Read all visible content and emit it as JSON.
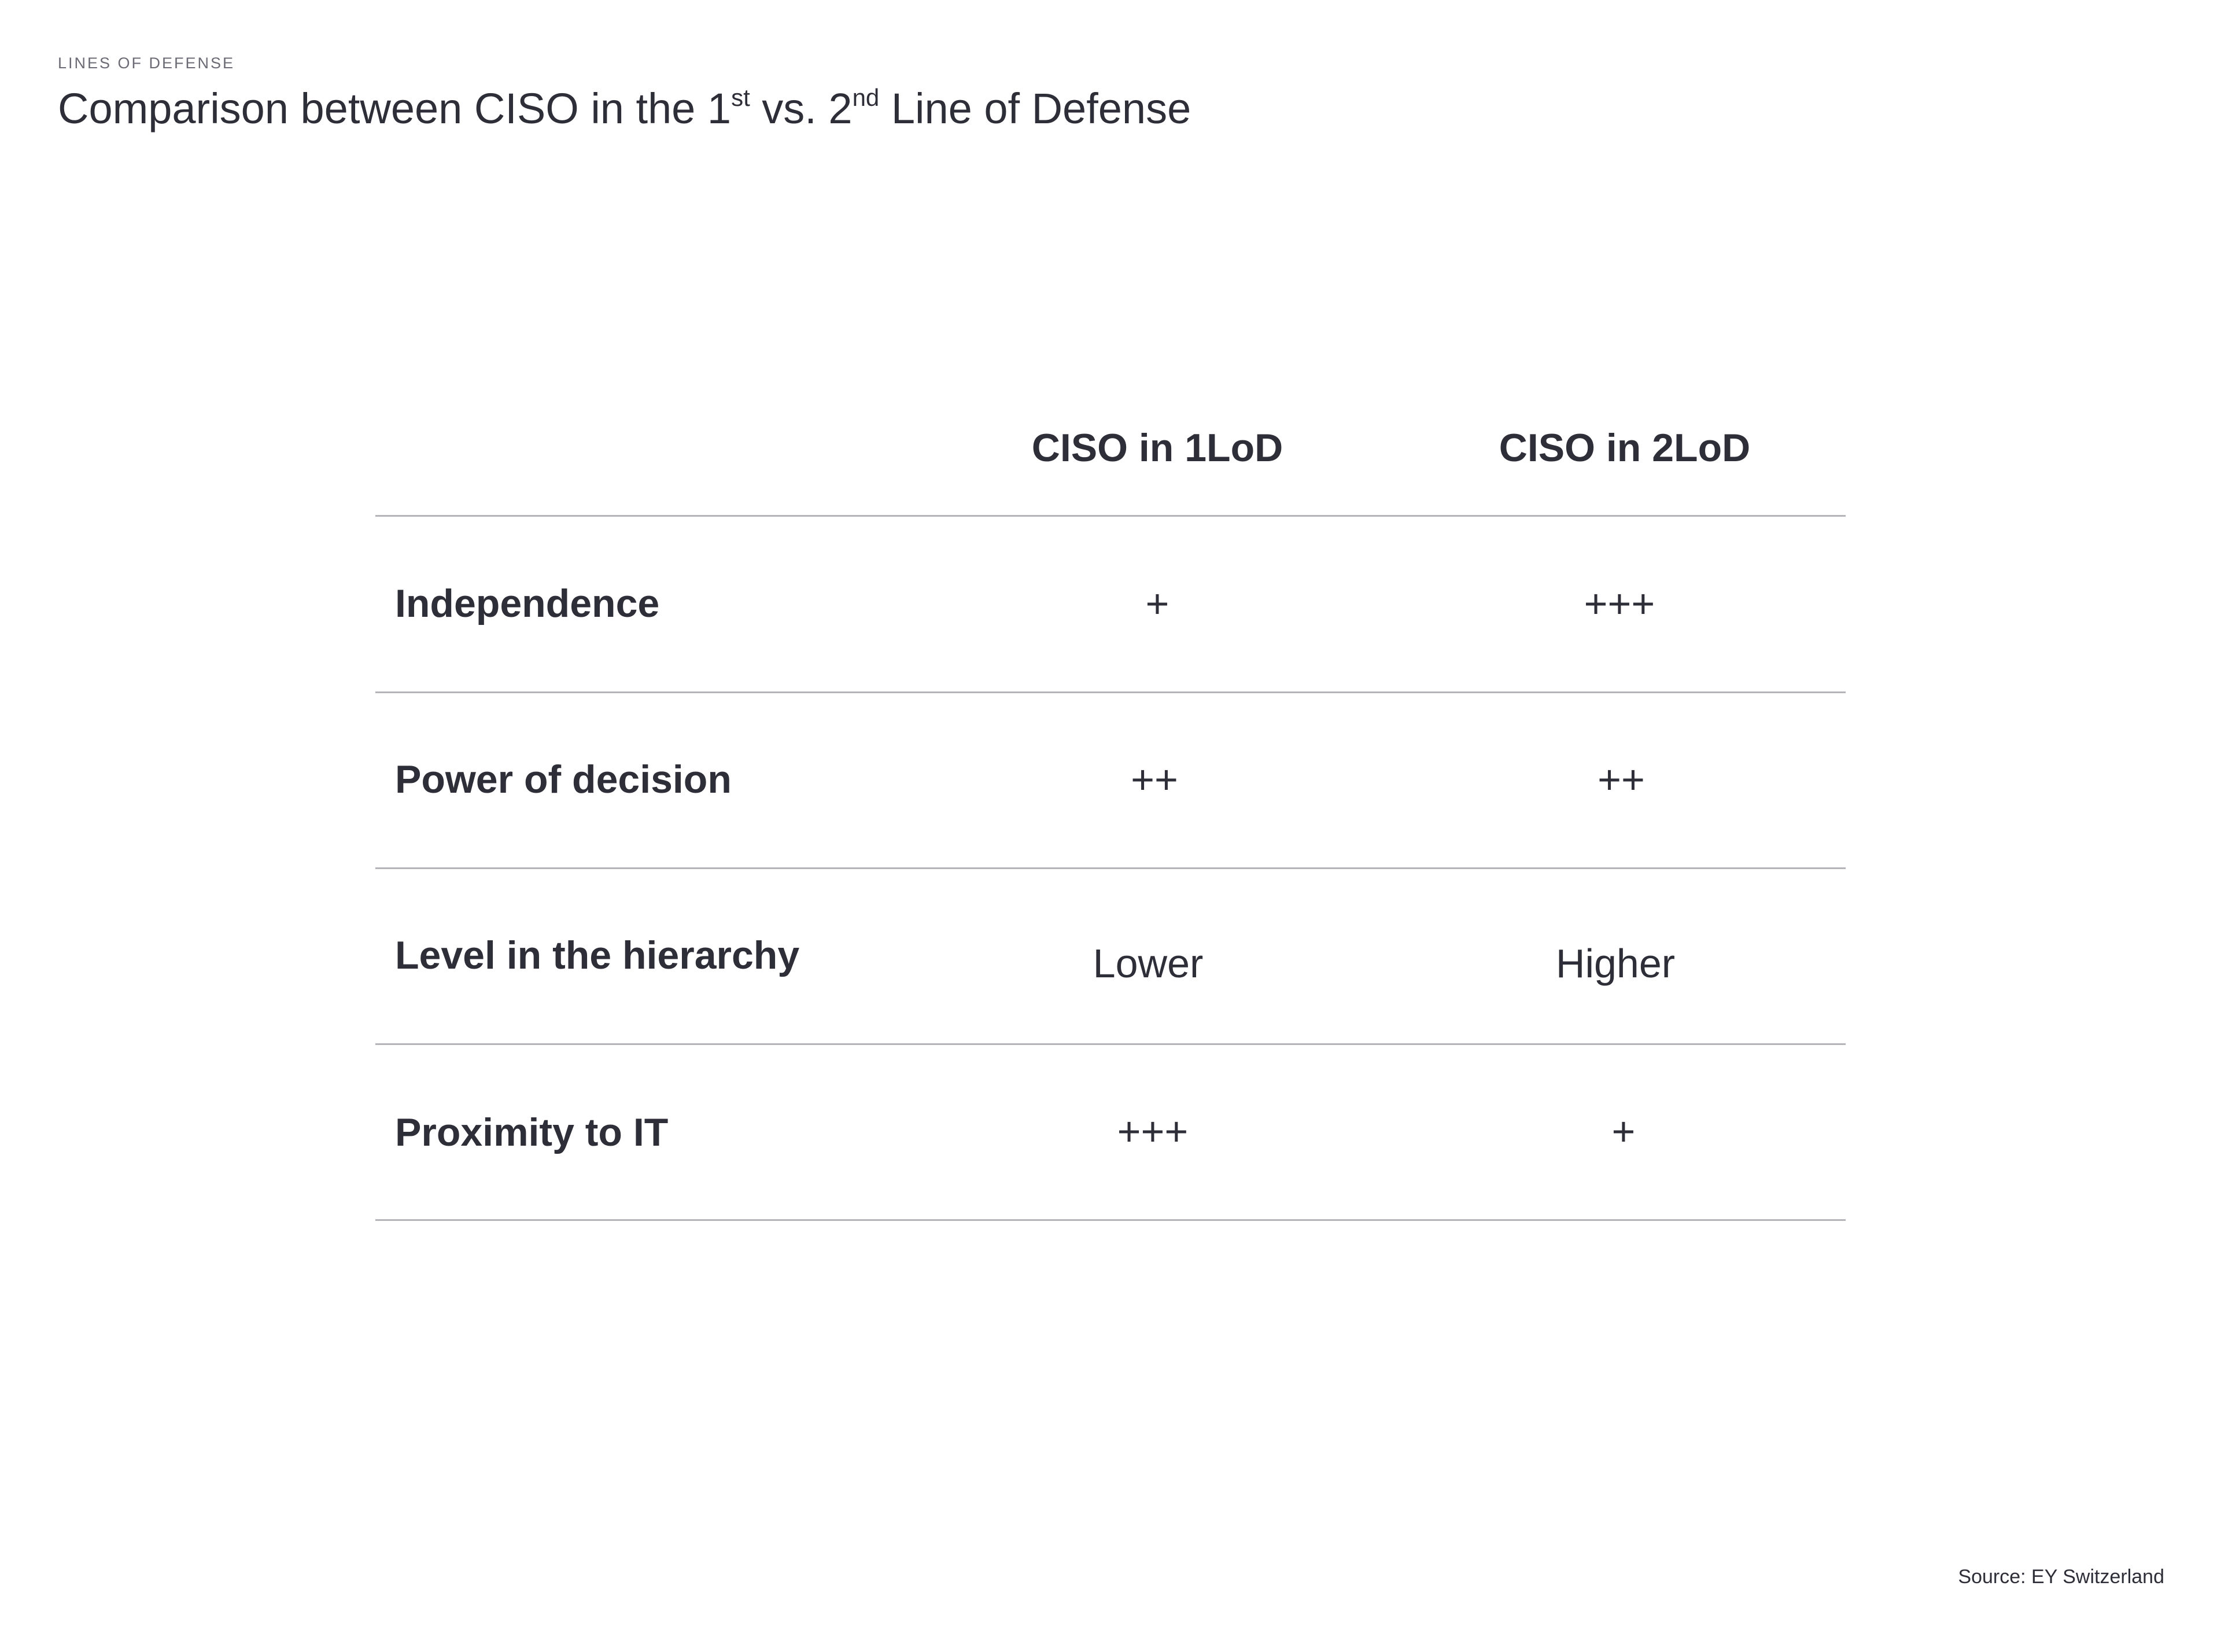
{
  "header": {
    "eyebrow": "LINES OF DEFENSE",
    "title_part1": "Comparison between CISO in the 1",
    "title_sup1": "st",
    "title_part2": " vs. 2",
    "title_sup2": "nd",
    "title_part3": " Line of Defense"
  },
  "table": {
    "columns": [
      "CISO in 1LoD",
      "CISO in 2LoD"
    ],
    "rows": [
      {
        "label": "Independence",
        "values": [
          "+",
          "+++"
        ]
      },
      {
        "label": "Power of decision",
        "values": [
          "++",
          "++"
        ]
      },
      {
        "label": "Level in the hierarchy",
        "values": [
          "Lower",
          "Higher"
        ]
      },
      {
        "label": "Proximity to IT",
        "values": [
          "+++",
          "+"
        ]
      }
    ]
  },
  "footer": {
    "source": "Source: EY Switzerland"
  }
}
